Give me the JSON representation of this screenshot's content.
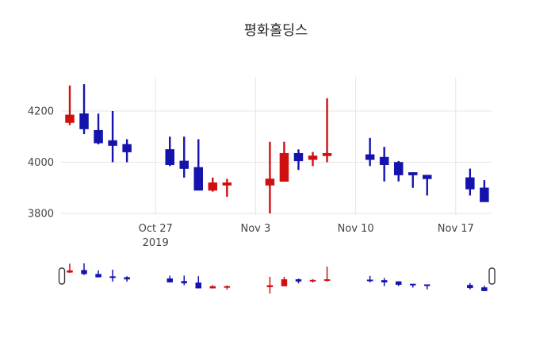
{
  "title": "평화홀딩스",
  "colors": {
    "increasing": "#d01010",
    "decreasing": "#1414ad",
    "grid": "#e5e5e5",
    "tick_label": "#444444",
    "background": "#ffffff",
    "handle_fill": "#ffffff",
    "handle_border": "#3a3a3a"
  },
  "chart_data": {
    "type": "candlestick",
    "title": "평화홀딩스",
    "x_dates": [
      "2019-10-21",
      "2019-10-22",
      "2019-10-23",
      "2019-10-24",
      "2019-10-25",
      "2019-10-28",
      "2019-10-29",
      "2019-10-30",
      "2019-10-31",
      "2019-11-01",
      "2019-11-04",
      "2019-11-05",
      "2019-11-06",
      "2019-11-07",
      "2019-11-08",
      "2019-11-11",
      "2019-11-12",
      "2019-11-13",
      "2019-11-14",
      "2019-11-15",
      "2019-11-18",
      "2019-11-19"
    ],
    "day_offsets": [
      0,
      1,
      2,
      3,
      4,
      7,
      8,
      9,
      10,
      11,
      14,
      15,
      16,
      17,
      18,
      21,
      22,
      23,
      24,
      25,
      28,
      29
    ],
    "series": {
      "open": [
        4155,
        4190,
        4125,
        4085,
        4070,
        4050,
        4005,
        3980,
        3890,
        3910,
        3910,
        3925,
        4035,
        4010,
        4025,
        4030,
        4020,
        4000,
        3960,
        3950,
        3940,
        3900
      ],
      "high": [
        4300,
        4305,
        4190,
        4200,
        4090,
        4100,
        4100,
        4090,
        3940,
        3935,
        4080,
        4080,
        4050,
        4040,
        4250,
        4095,
        4060,
        4005,
        3960,
        3950,
        3975,
        3930
      ],
      "low": [
        4145,
        4110,
        4070,
        4000,
        4000,
        3985,
        3940,
        3890,
        3885,
        3865,
        3800,
        3925,
        3970,
        3985,
        4000,
        3985,
        3925,
        3925,
        3900,
        3870,
        3870,
        3845
      ],
      "close": [
        4185,
        4130,
        4075,
        4065,
        4040,
        3990,
        3975,
        3890,
        3920,
        3920,
        3935,
        4035,
        4005,
        4025,
        4035,
        4010,
        3990,
        3950,
        3950,
        3935,
        3895,
        3845
      ]
    },
    "yaxis": {
      "ticks": [
        "3800",
        "4000",
        "4200"
      ],
      "tick_values": [
        3800,
        4000,
        4200
      ],
      "range": [
        3794,
        4333
      ],
      "grid": true
    },
    "xaxis": {
      "ticks": [
        {
          "label": "Oct 27",
          "sub": "2019",
          "day": 6
        },
        {
          "label": "Nov 3",
          "sub": "",
          "day": 13
        },
        {
          "label": "Nov 10",
          "sub": "",
          "day": 20
        },
        {
          "label": "Nov 17",
          "sub": "",
          "day": 27
        }
      ],
      "grid": true
    },
    "rangeslider": {
      "visible": true,
      "handles": 2
    },
    "legend": "none"
  }
}
